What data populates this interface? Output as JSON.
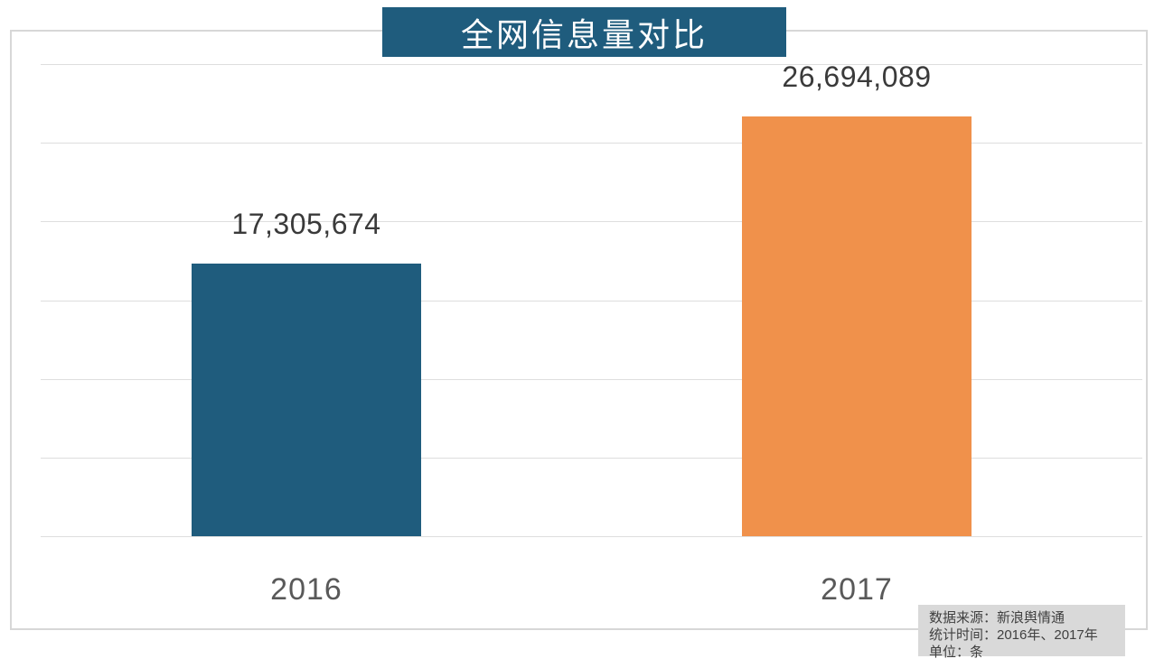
{
  "title": "全网信息量对比",
  "chart_data": {
    "type": "bar",
    "title": "全网信息量对比",
    "categories": [
      "2016",
      "2017"
    ],
    "values": [
      17305674,
      26694089
    ],
    "value_labels": [
      "17,305,674",
      "26,694,089"
    ],
    "series_colors": [
      "#1F5C7D",
      "#F0914B"
    ],
    "ylim": [
      0,
      30000000
    ],
    "gridline_count": 7,
    "grid": true,
    "legend_position": "none",
    "xlabel": "",
    "ylabel": "",
    "unit": "条"
  },
  "footnote": {
    "lines": [
      "数据来源：新浪舆情通",
      "统计时间：2016年、2017年",
      "单位：条"
    ]
  },
  "colors": {
    "title_bg": "#1F5C7D",
    "title_text": "#FFFFFF",
    "bar_2016": "#1F5C7D",
    "bar_2017": "#F0914B",
    "grid": "#DEDEDE",
    "frame_border": "#D7D7D7",
    "value_label": "#3A3A3A",
    "category_label": "#595959",
    "footnote_bg": "#D9D9D9",
    "footnote_text": "#404040"
  }
}
